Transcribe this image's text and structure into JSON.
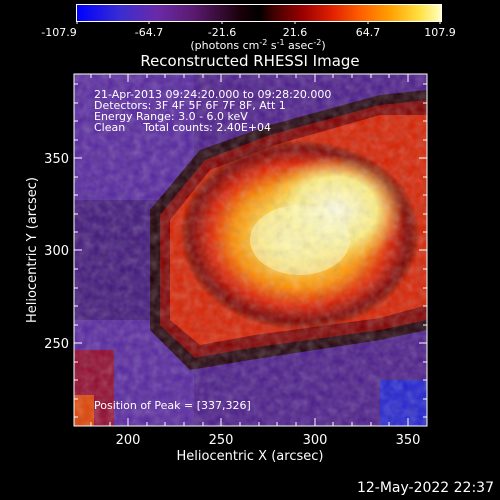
{
  "colorbar": {
    "ticks": [
      "-107.9",
      "-64.7",
      "-21.6",
      "21.6",
      "64.7",
      "107.9"
    ],
    "units_main": "(photons cm",
    "units_exp1": "-2",
    "units_mid": " s",
    "units_exp2": "-1",
    "units_asec": " asec",
    "units_exp3": "-2",
    "units_close": ")"
  },
  "title": "Reconstructed RHESSI Image",
  "info": {
    "line1": "21-Apr-2013 09:24:20.000 to 09:28:20.000",
    "line2": "Detectors: 3F 4F 5F 6F 7F 8F, Att 1",
    "line3": "Energy Range: 3.0 - 6.0 keV",
    "line4_a": "Clean",
    "line4_b": "Total counts: 2.40E+04"
  },
  "peak_label": "Position of Peak = [337,326]",
  "x_axis": {
    "label": "Heliocentric X (arcsec)",
    "ticks": [
      "200",
      "250",
      "300",
      "350"
    ]
  },
  "y_axis": {
    "label": "Heliocentric Y (arcsec)",
    "ticks": [
      "250",
      "300",
      "350"
    ]
  },
  "timestamp": "12-May-2022 22:37"
}
